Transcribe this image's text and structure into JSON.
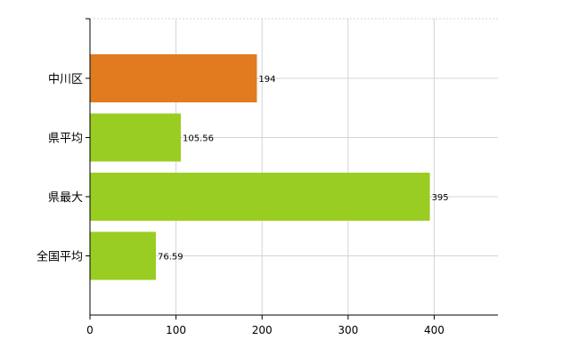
{
  "chart_data": {
    "type": "bar",
    "orientation": "horizontal",
    "categories": [
      "中川区",
      "県平均",
      "県最大",
      "全国平均"
    ],
    "values": [
      194,
      105.56,
      395,
      76.59
    ],
    "data_labels": [
      "194",
      "105.56",
      "395",
      "76.59"
    ],
    "bar_colors": [
      "#E07B20",
      "#9ACD22",
      "#9ACD22",
      "#9ACD22"
    ],
    "xlim": [
      0,
      475
    ],
    "x_ticks": [
      0,
      100,
      200,
      300,
      400
    ],
    "grid": true,
    "legend": "none",
    "title": "",
    "xlabel": "",
    "ylabel": ""
  }
}
